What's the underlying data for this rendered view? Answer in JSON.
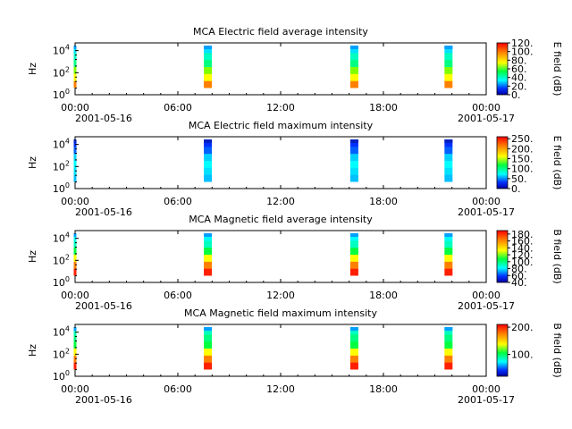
{
  "chart_data": [
    {
      "type": "heatmap",
      "title": "MCA  Electric field average intensity",
      "ylabel": "Hz",
      "y_scale": "log",
      "y_ticks": [
        "10",
        "10",
        "10"
      ],
      "y_tick_exponents": [
        "0",
        "2",
        "4"
      ],
      "x_ticks": [
        "00:00",
        "06:00",
        "12:00",
        "18:00",
        "00:00"
      ],
      "x_dates": [
        "2001-05-16",
        "2001-05-17"
      ],
      "colorbar_label": "E field (dB)",
      "colorbar_ticks": [
        "0.",
        "20.",
        "40.",
        "60.",
        "80.",
        "100.",
        "120."
      ],
      "colorbar_range": [
        0,
        120
      ],
      "bursts_hours": [
        0.0,
        7.75,
        16.3,
        21.8
      ]
    },
    {
      "type": "heatmap",
      "title": "MCA  Electric field maximum intensity",
      "ylabel": "Hz",
      "y_scale": "log",
      "y_ticks": [
        "10",
        "10",
        "10"
      ],
      "y_tick_exponents": [
        "0",
        "2",
        "4"
      ],
      "x_ticks": [
        "00:00",
        "06:00",
        "12:00",
        "18:00",
        "00:00"
      ],
      "x_dates": [
        "2001-05-16",
        "2001-05-17"
      ],
      "colorbar_label": "E field (dB)",
      "colorbar_ticks": [
        "0.",
        "50.",
        "100.",
        "150.",
        "200.",
        "250."
      ],
      "colorbar_range": [
        0,
        260
      ],
      "bursts_hours": [
        0.0,
        7.75,
        16.3,
        21.8
      ]
    },
    {
      "type": "heatmap",
      "title": "MCA  Magnetic field average intensity",
      "ylabel": "Hz",
      "y_scale": "log",
      "y_ticks": [
        "10",
        "10",
        "10"
      ],
      "y_tick_exponents": [
        "0",
        "2",
        "4"
      ],
      "x_ticks": [
        "00:00",
        "06:00",
        "12:00",
        "18:00",
        "00:00"
      ],
      "x_dates": [
        "2001-05-16",
        "2001-05-17"
      ],
      "colorbar_label": "B field (dB)",
      "colorbar_ticks": [
        "40.",
        "60.",
        "80.",
        "100.",
        "120.",
        "140.",
        "160.",
        "180."
      ],
      "colorbar_range": [
        40,
        190
      ],
      "bursts_hours": [
        0.0,
        7.75,
        16.3,
        21.8
      ]
    },
    {
      "type": "heatmap",
      "title": "MCA  Magnetic field maximum intensity",
      "ylabel": "Hz",
      "y_scale": "log",
      "y_ticks": [
        "10",
        "10",
        "10"
      ],
      "y_tick_exponents": [
        "0",
        "2",
        "4"
      ],
      "x_ticks": [
        "00:00",
        "06:00",
        "12:00",
        "18:00",
        "00:00"
      ],
      "x_dates": [
        "2001-05-16",
        "2001-05-17"
      ],
      "colorbar_label": "B field (dB)",
      "colorbar_ticks": [
        "100.",
        "200."
      ],
      "colorbar_range": [
        20,
        210
      ],
      "bursts_hours": [
        0.0,
        7.75,
        16.3,
        21.8
      ]
    }
  ]
}
